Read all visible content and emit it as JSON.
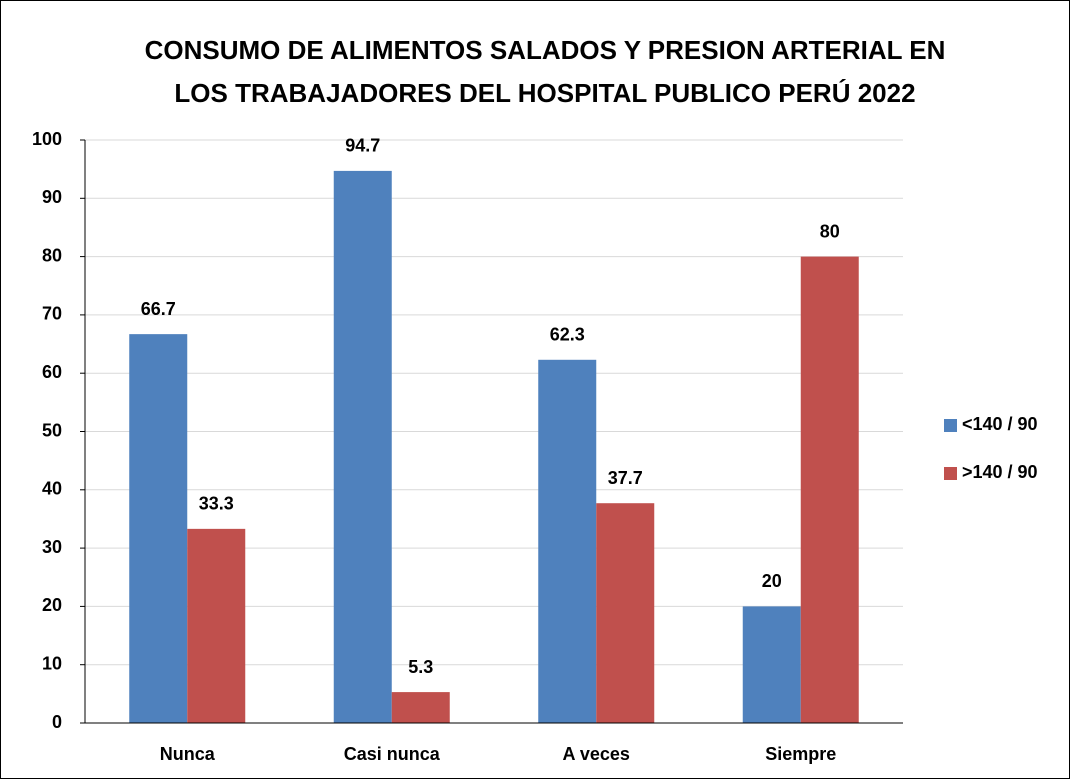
{
  "chart_data": {
    "type": "bar",
    "title": [
      "CONSUMO DE ALIMENTOS SALADOS Y PRESION ARTERIAL EN",
      "LOS TRABAJADORES DEL HOSPITAL PUBLICO PERÚ 2022"
    ],
    "categories": [
      "Nunca",
      "Casi nunca",
      "A veces",
      "Siempre"
    ],
    "series": [
      {
        "name": "<140 / 90",
        "color": "#4f81bd",
        "values": [
          66.7,
          94.7,
          62.3,
          20
        ]
      },
      {
        "name": ">140 / 90",
        "color": "#c0504d",
        "values": [
          33.3,
          5.3,
          37.7,
          80
        ]
      }
    ],
    "ylim": [
      0,
      100
    ],
    "yticks": [
      0,
      10,
      20,
      30,
      40,
      50,
      60,
      70,
      80,
      90,
      100
    ],
    "grid": true,
    "legend": "right"
  }
}
